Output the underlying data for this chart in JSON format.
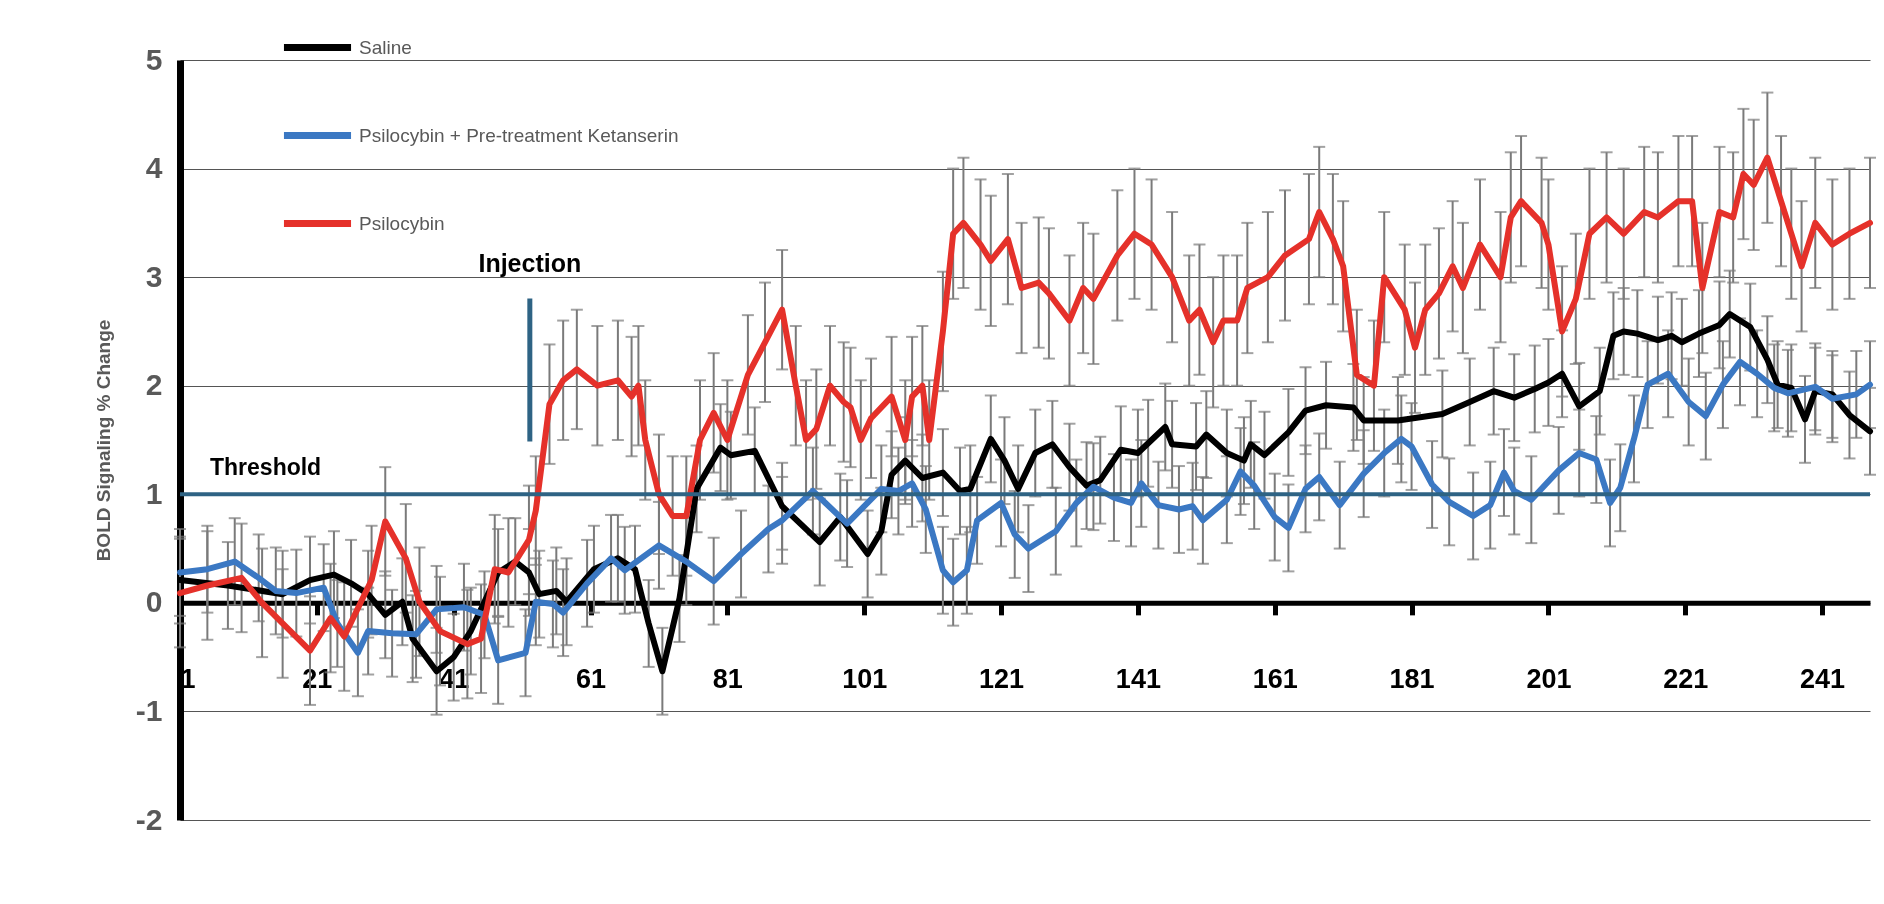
{
  "chart_data": {
    "type": "line",
    "ylabel": "BOLD Signaling % Change",
    "xlim": [
      1,
      248
    ],
    "xticks": [
      1,
      21,
      41,
      61,
      81,
      101,
      121,
      141,
      161,
      181,
      201,
      221,
      241
    ],
    "ylim": [
      -2,
      5
    ],
    "yticks": [
      -2,
      -1,
      0,
      1,
      2,
      3,
      4,
      5
    ],
    "grid": "y",
    "legend": "top left",
    "ref_lines": [
      {
        "axis": "y",
        "value": 1,
        "label": "Threshold",
        "color": "#2e6384"
      }
    ],
    "annotations": [
      "Injection"
    ],
    "series": [
      {
        "name": "Saline",
        "color": "#000000",
        "x": [
          1,
          8,
          16,
          20,
          23.5,
          26,
          28.5,
          31,
          33.5,
          35,
          38.5,
          41,
          43.5,
          47.5,
          50,
          52,
          53.5,
          56,
          57.5,
          61.5,
          65,
          67.5,
          69.5,
          71.5,
          74,
          76.5,
          80,
          81.5,
          85,
          89,
          94.5,
          97.5,
          101.5,
          103.5,
          105,
          107,
          109.5,
          112.5,
          115,
          116.5,
          119.5,
          121.5,
          123.5,
          126,
          128.5,
          131,
          133.5,
          135.5,
          138.5,
          141,
          142.5,
          145,
          146,
          149.5,
          151,
          154,
          156.5,
          157.5,
          159.5,
          163,
          165.5,
          168.5,
          172.5,
          174,
          179,
          185.5,
          189.5,
          193,
          196,
          199,
          201,
          203,
          205.5,
          208.5,
          210.5,
          212,
          214,
          217,
          219,
          220.5,
          223,
          226,
          227.5,
          230.5,
          233,
          234.5,
          236.5,
          238.5,
          240,
          242.5,
          245,
          248
        ],
        "values": [
          0.21,
          0.16,
          0.08,
          0.21,
          0.26,
          0.18,
          0.08,
          -0.11,
          0.01,
          -0.33,
          -0.63,
          -0.5,
          -0.26,
          0.28,
          0.38,
          0.28,
          0.08,
          0.11,
          0.01,
          0.31,
          0.41,
          0.31,
          -0.19,
          -0.63,
          0.04,
          1.05,
          1.43,
          1.36,
          1.4,
          0.89,
          0.56,
          0.79,
          0.45,
          0.66,
          1.18,
          1.31,
          1.15,
          1.2,
          1.03,
          1.05,
          1.51,
          1.31,
          1.05,
          1.38,
          1.46,
          1.25,
          1.08,
          1.13,
          1.41,
          1.38,
          1.47,
          1.62,
          1.46,
          1.44,
          1.55,
          1.38,
          1.31,
          1.46,
          1.36,
          1.57,
          1.77,
          1.82,
          1.8,
          1.68,
          1.68,
          1.74,
          1.85,
          1.95,
          1.89,
          1.97,
          2.03,
          2.11,
          1.81,
          1.95,
          2.46,
          2.5,
          2.48,
          2.42,
          2.46,
          2.4,
          2.48,
          2.56,
          2.66,
          2.54,
          2.24,
          2.01,
          1.98,
          1.69,
          1.95,
          1.92,
          1.73,
          1.58
        ],
        "errors": [
          0.4,
          0.4,
          0.4,
          0.4,
          0.4,
          0.4,
          0.4,
          0.4,
          0.4,
          0.4,
          0.4,
          0.4,
          0.4,
          0.4,
          0.4,
          0.4,
          0.4,
          0.4,
          0.4,
          0.4,
          0.4,
          0.4,
          0.4,
          0.4,
          0.4,
          0.4,
          0.4,
          0.4,
          0.4,
          0.4,
          0.4,
          0.4,
          0.4,
          0.4,
          0.4,
          0.4,
          0.4,
          0.4,
          0.4,
          0.4,
          0.4,
          0.4,
          0.4,
          0.4,
          0.4,
          0.4,
          0.4,
          0.4,
          0.4,
          0.4,
          0.4,
          0.4,
          0.4,
          0.4,
          0.4,
          0.4,
          0.4,
          0.4,
          0.4,
          0.4,
          0.4,
          0.4,
          0.4,
          0.4,
          0.4,
          0.4,
          0.4,
          0.4,
          0.4,
          0.4,
          0.4,
          0.4,
          0.4,
          0.4,
          0.4,
          0.4,
          0.4,
          0.4,
          0.4,
          0.4,
          0.4,
          0.4,
          0.4,
          0.4,
          0.4,
          0.4,
          0.4,
          0.4,
          0.4,
          0.4,
          0.4,
          0.4
        ]
      },
      {
        "name": "Psilocybin + Pre-treatment Ketanserin",
        "color": "#3b78c3",
        "x": [
          1,
          5,
          9,
          12.5,
          15,
          18,
          22,
          24,
          27,
          28.5,
          32,
          35.5,
          38.5,
          42.5,
          45.5,
          47.5,
          51.5,
          53,
          55.5,
          57,
          60.5,
          64,
          66,
          71,
          75,
          79,
          83,
          87,
          89,
          93.5,
          98.5,
          103.5,
          106,
          108,
          110,
          112.5,
          114,
          116,
          117.5,
          121,
          123,
          125,
          129,
          132,
          134.5,
          137.5,
          140,
          141.5,
          144,
          147,
          149,
          150.5,
          154,
          156,
          158,
          161,
          163,
          165.5,
          167.5,
          170.5,
          174,
          177,
          179.5,
          181,
          184,
          186.5,
          190,
          192.5,
          194.5,
          196,
          198.5,
          202.5,
          205.5,
          208,
          210,
          211.5,
          213.5,
          215.5,
          218.5,
          221.5,
          224,
          226.5,
          229,
          231.5,
          234,
          236,
          240,
          242.5,
          246,
          248
        ],
        "values": [
          0.28,
          0.31,
          0.38,
          0.23,
          0.11,
          0.09,
          0.14,
          -0.19,
          -0.46,
          -0.26,
          -0.28,
          -0.29,
          -0.06,
          -0.04,
          -0.11,
          -0.53,
          -0.46,
          0.01,
          -0.01,
          -0.09,
          0.18,
          0.41,
          0.3,
          0.53,
          0.38,
          0.2,
          0.45,
          0.68,
          0.76,
          1.03,
          0.73,
          1.05,
          1.03,
          1.1,
          0.86,
          0.3,
          0.19,
          0.3,
          0.76,
          0.92,
          0.63,
          0.5,
          0.66,
          0.92,
          1.07,
          0.97,
          0.92,
          1.1,
          0.9,
          0.86,
          0.89,
          0.76,
          0.95,
          1.21,
          1.08,
          0.79,
          0.69,
          1.05,
          1.16,
          0.9,
          1.19,
          1.38,
          1.51,
          1.44,
          1.09,
          0.93,
          0.8,
          0.9,
          1.2,
          1.03,
          0.95,
          1.22,
          1.38,
          1.32,
          0.92,
          1.06,
          1.51,
          2.01,
          2.11,
          1.85,
          1.72,
          2.01,
          2.22,
          2.11,
          1.98,
          1.93,
          1.99,
          1.88,
          1.92,
          2.01
        ],
        "errors": [
          0.4,
          0.4,
          0.4,
          0.4,
          0.4,
          0.4,
          0.4,
          0.4,
          0.4,
          0.4,
          0.4,
          0.4,
          0.4,
          0.4,
          0.4,
          0.4,
          0.4,
          0.4,
          0.4,
          0.4,
          0.4,
          0.4,
          0.4,
          0.4,
          0.4,
          0.4,
          0.4,
          0.4,
          0.4,
          0.4,
          0.4,
          0.4,
          0.4,
          0.4,
          0.4,
          0.4,
          0.4,
          0.4,
          0.4,
          0.4,
          0.4,
          0.4,
          0.4,
          0.4,
          0.4,
          0.4,
          0.4,
          0.4,
          0.4,
          0.4,
          0.4,
          0.4,
          0.4,
          0.4,
          0.4,
          0.4,
          0.4,
          0.4,
          0.4,
          0.4,
          0.4,
          0.4,
          0.4,
          0.4,
          0.4,
          0.4,
          0.4,
          0.4,
          0.4,
          0.4,
          0.4,
          0.4,
          0.4,
          0.4,
          0.4,
          0.4,
          0.4,
          0.4,
          0.4,
          0.4,
          0.4,
          0.4,
          0.4,
          0.4,
          0.4,
          0.4,
          0.4,
          0.4,
          0.4,
          0.4
        ]
      },
      {
        "name": "Psilocybin",
        "color": "#e5312a",
        "x": [
          1,
          5,
          10,
          13,
          16,
          20,
          23,
          25,
          29,
          31,
          34,
          36,
          39,
          43,
          45,
          47,
          49,
          52,
          53,
          55,
          57,
          59,
          62,
          65,
          67,
          68,
          69,
          71,
          73,
          75,
          77,
          79,
          81,
          84,
          86.5,
          89,
          91,
          92.5,
          94,
          96,
          98,
          99,
          100.5,
          102,
          105,
          107,
          108,
          109.5,
          110.5,
          112.5,
          114,
          115.5,
          118,
          119.5,
          122,
          124,
          126.5,
          128,
          131,
          133,
          134.5,
          138,
          140.5,
          143,
          146,
          148.5,
          150,
          152,
          153.5,
          155.5,
          157,
          160,
          162.5,
          166,
          167.5,
          169.5,
          171,
          173,
          175.5,
          177,
          180,
          181.5,
          183,
          185,
          187,
          188.5,
          191,
          194,
          195.5,
          197,
          200,
          201,
          203,
          205,
          207,
          209.5,
          212,
          215,
          217,
          220,
          222,
          223.5,
          226,
          228,
          229.5,
          231,
          233,
          235,
          236.5,
          238,
          240,
          242.5,
          245,
          248
        ],
        "values": [
          0.09,
          0.16,
          0.23,
          0.0,
          -0.19,
          -0.44,
          -0.14,
          -0.31,
          0.21,
          0.75,
          0.41,
          0.01,
          -0.26,
          -0.38,
          -0.33,
          0.31,
          0.28,
          0.58,
          0.85,
          1.83,
          2.05,
          2.15,
          2.0,
          2.05,
          1.9,
          2.0,
          1.5,
          1.0,
          0.8,
          0.8,
          1.5,
          1.75,
          1.5,
          2.1,
          2.4,
          2.7,
          2.0,
          1.5,
          1.6,
          2.0,
          1.85,
          1.8,
          1.5,
          1.7,
          1.9,
          1.5,
          1.9,
          2.0,
          1.5,
          2.5,
          3.4,
          3.5,
          3.3,
          3.15,
          3.35,
          2.9,
          2.95,
          2.85,
          2.6,
          2.9,
          2.8,
          3.2,
          3.4,
          3.3,
          3.0,
          2.6,
          2.7,
          2.4,
          2.6,
          2.6,
          2.9,
          3.0,
          3.2,
          3.35,
          3.6,
          3.35,
          3.1,
          2.1,
          2.0,
          3.0,
          2.7,
          2.35,
          2.7,
          2.85,
          3.1,
          2.9,
          3.3,
          3.0,
          3.55,
          3.7,
          3.5,
          3.3,
          2.5,
          2.8,
          3.4,
          3.55,
          3.4,
          3.6,
          3.55,
          3.7,
          3.7,
          2.9,
          3.6,
          3.55,
          3.95,
          3.85,
          4.1,
          3.7,
          3.4,
          3.1,
          3.5,
          3.3,
          3.4,
          3.5
        ],
        "errors": [
          0.5,
          0.5,
          0.5,
          0.5,
          0.5,
          0.5,
          0.5,
          0.5,
          0.5,
          0.5,
          0.5,
          0.5,
          0.5,
          0.5,
          0.5,
          0.5,
          0.5,
          0.5,
          0.5,
          0.55,
          0.55,
          0.55,
          0.55,
          0.55,
          0.55,
          0.55,
          0.55,
          0.55,
          0.55,
          0.55,
          0.55,
          0.55,
          0.55,
          0.55,
          0.55,
          0.55,
          0.55,
          0.55,
          0.55,
          0.55,
          0.55,
          0.55,
          0.55,
          0.55,
          0.55,
          0.55,
          0.55,
          0.55,
          0.55,
          0.55,
          0.6,
          0.6,
          0.6,
          0.6,
          0.6,
          0.6,
          0.6,
          0.6,
          0.6,
          0.6,
          0.6,
          0.6,
          0.6,
          0.6,
          0.6,
          0.6,
          0.6,
          0.6,
          0.6,
          0.6,
          0.6,
          0.6,
          0.6,
          0.6,
          0.6,
          0.6,
          0.6,
          0.6,
          0.6,
          0.6,
          0.6,
          0.6,
          0.6,
          0.6,
          0.6,
          0.6,
          0.6,
          0.6,
          0.6,
          0.6,
          0.6,
          0.6,
          0.6,
          0.6,
          0.6,
          0.6,
          0.6,
          0.6,
          0.6,
          0.6,
          0.6,
          0.6,
          0.6,
          0.6,
          0.6,
          0.6,
          0.6,
          0.6,
          0.6,
          0.6,
          0.6,
          0.6,
          0.6,
          0.6
        ]
      }
    ]
  }
}
